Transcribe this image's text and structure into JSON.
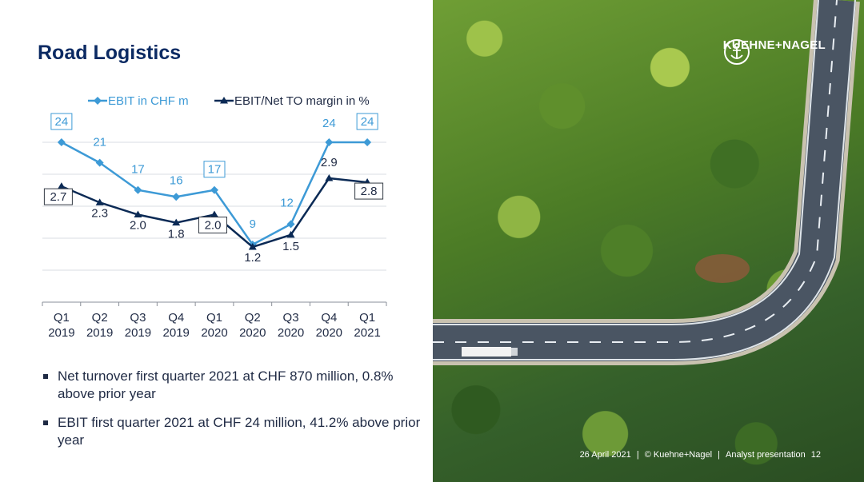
{
  "slide": {
    "title": "Road Logistics",
    "bullets": [
      "Net turnover first quarter 2021 at CHF 870 million, 0.8% above prior year",
      "EBIT first quarter 2021 at CHF 24 million, 41.2% above prior year"
    ]
  },
  "chart_data": {
    "type": "line",
    "categories": [
      [
        "Q1",
        "2019"
      ],
      [
        "Q2",
        "2019"
      ],
      [
        "Q3",
        "2019"
      ],
      [
        "Q4",
        "2019"
      ],
      [
        "Q1",
        "2020"
      ],
      [
        "Q2",
        "2020"
      ],
      [
        "Q3",
        "2020"
      ],
      [
        "Q4",
        "2020"
      ],
      [
        "Q1",
        "2021"
      ]
    ],
    "series": [
      {
        "name": "EBIT in CHF m",
        "color": "#3d9ad6",
        "marker": "diamond",
        "values": [
          24,
          21,
          17,
          16,
          17,
          9,
          12,
          24,
          24
        ],
        "labels": [
          "24",
          "21",
          "17",
          "16",
          "17",
          "9",
          "12",
          "24",
          "24"
        ],
        "boxed": [
          true,
          false,
          false,
          false,
          true,
          false,
          false,
          false,
          true
        ]
      },
      {
        "name": "EBIT/Net TO margin in %",
        "color": "#0b2a55",
        "marker": "triangle",
        "values": [
          2.7,
          2.3,
          2.0,
          1.8,
          2.0,
          1.2,
          1.5,
          2.9,
          2.8
        ],
        "labels": [
          "2.7",
          "2.3",
          "2.0",
          "1.8",
          "2.0",
          "1.2",
          "1.5",
          "2.9",
          "2.8"
        ],
        "boxed": [
          true,
          false,
          false,
          false,
          true,
          false,
          false,
          false,
          true
        ]
      }
    ],
    "legend_position": "top",
    "grid": true
  },
  "branding": {
    "logo_text": "KUEHNE+NAGEL"
  },
  "footer": {
    "date": "26 April 2021",
    "copyright": "© Kuehne+Nagel",
    "presentation": "Analyst presentation",
    "page": "12"
  }
}
